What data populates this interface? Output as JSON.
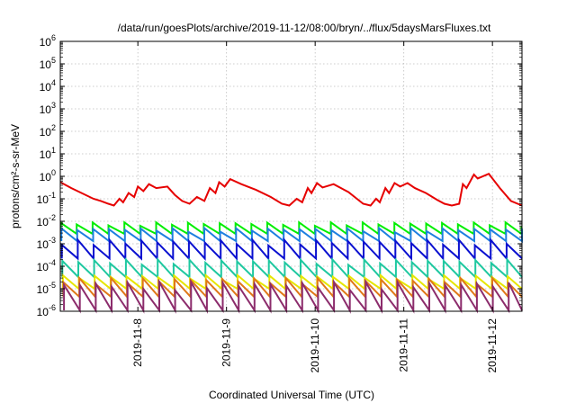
{
  "chart_data": {
    "type": "line",
    "title": "/data/run/goesPlots/archive/2019-11-12/08:00/bryn/../flux/5daysMarsFluxes.txt",
    "xlabel": "Coordinated Universal Time (UTC)",
    "ylabel": "protons/cm²-s-sr-MeV",
    "yscale": "log",
    "xlim": [
      "2019-11-07 03:00",
      "2019-11-12 08:00"
    ],
    "ylim": [
      1e-06,
      1000000.0
    ],
    "y_ticks": [
      {
        "base": "10",
        "exp": "-6"
      },
      {
        "base": "10",
        "exp": "-5"
      },
      {
        "base": "10",
        "exp": "-4"
      },
      {
        "base": "10",
        "exp": "-3"
      },
      {
        "base": "10",
        "exp": "-2"
      },
      {
        "base": "10",
        "exp": "-1"
      },
      {
        "base": "10",
        "exp": "0"
      },
      {
        "base": "10",
        "exp": "1"
      },
      {
        "base": "10",
        "exp": "2"
      },
      {
        "base": "10",
        "exp": "3"
      },
      {
        "base": "10",
        "exp": "4"
      },
      {
        "base": "10",
        "exp": "5"
      },
      {
        "base": "10",
        "exp": "6"
      }
    ],
    "x_ticks": [
      "2019-11-8",
      "2019-11-9",
      "2019-11-10",
      "2019-11-11",
      "2019-11-12"
    ],
    "grid": true,
    "legend": "none",
    "series": [
      {
        "color": "#e60000",
        "x": [
          "2019-11-07 03:00",
          "2019-11-07 06:00",
          "2019-11-07 12:00",
          "2019-11-07 14:00",
          "2019-11-07 16:00",
          "2019-11-07 17:30",
          "2019-11-07 19:00",
          "2019-11-07 20:00",
          "2019-11-07 21:30",
          "2019-11-07 23:00",
          "2019-11-08 00:00",
          "2019-11-08 01:30",
          "2019-11-08 03:00",
          "2019-11-08 05:00",
          "2019-11-08 08:00",
          "2019-11-08 10:00",
          "2019-11-08 12:00",
          "2019-11-08 14:00",
          "2019-11-08 16:00",
          "2019-11-08 18:00",
          "2019-11-08 19:30",
          "2019-11-08 21:00",
          "2019-11-08 22:00",
          "2019-11-08 23:30",
          "2019-11-09 01:00",
          "2019-11-09 04:00",
          "2019-11-09 08:00",
          "2019-11-09 12:00",
          "2019-11-09 15:00",
          "2019-11-09 17:00",
          "2019-11-09 19:00",
          "2019-11-09 20:30",
          "2019-11-09 22:00",
          "2019-11-09 23:00",
          "2019-11-10 00:30",
          "2019-11-10 02:00",
          "2019-11-10 05:00",
          "2019-11-10 09:00",
          "2019-11-10 13:00",
          "2019-11-10 15:00",
          "2019-11-10 16:30",
          "2019-11-10 17:30",
          "2019-11-10 19:00",
          "2019-11-10 20:00",
          "2019-11-10 21:30",
          "2019-11-10 23:00",
          "2019-11-11 01:00",
          "2019-11-11 03:00",
          "2019-11-11 06:00",
          "2019-11-11 09:00",
          "2019-11-11 11:00",
          "2019-11-11 13:00",
          "2019-11-11 15:00",
          "2019-11-11 16:00",
          "2019-11-11 17:00",
          "2019-11-11 19:00",
          "2019-11-11 20:00",
          "2019-11-11 23:00",
          "2019-11-12 02:00",
          "2019-11-12 05:00",
          "2019-11-12 08:00"
        ],
        "values": [
          0.55,
          0.3,
          0.1,
          0.08,
          0.06,
          0.05,
          0.1,
          0.07,
          0.18,
          0.12,
          0.35,
          0.22,
          0.45,
          0.3,
          0.35,
          0.15,
          0.08,
          0.06,
          0.12,
          0.08,
          0.3,
          0.18,
          0.55,
          0.35,
          0.75,
          0.45,
          0.25,
          0.12,
          0.06,
          0.05,
          0.1,
          0.07,
          0.3,
          0.18,
          0.5,
          0.32,
          0.45,
          0.2,
          0.06,
          0.05,
          0.1,
          0.07,
          0.3,
          0.18,
          0.5,
          0.35,
          0.5,
          0.3,
          0.18,
          0.09,
          0.06,
          0.05,
          0.06,
          0.45,
          0.3,
          1.2,
          0.8,
          1.3,
          0.3,
          0.08,
          0.05
        ]
      },
      {
        "color": "#00ee00",
        "amp": 1.0,
        "values_range": [
          0.0025,
          0.009
        ],
        "desc": "sawtooth"
      },
      {
        "color": "#1e7fe0",
        "values_range": [
          0.0012,
          0.005
        ]
      },
      {
        "color": "#0a10d0",
        "values_range": [
          0.0002,
          0.0015
        ]
      },
      {
        "color": "#1ec8a0",
        "values_range": [
          3e-05,
          0.0002
        ]
      },
      {
        "color": "#e6e600",
        "values_range": [
          9e-06,
          4e-05
        ]
      },
      {
        "color": "#e07818",
        "values_range": [
          4e-06,
          3e-05
        ]
      },
      {
        "color": "#8c2c6c",
        "values_range": [
          1e-06,
          2e-05
        ]
      }
    ]
  }
}
